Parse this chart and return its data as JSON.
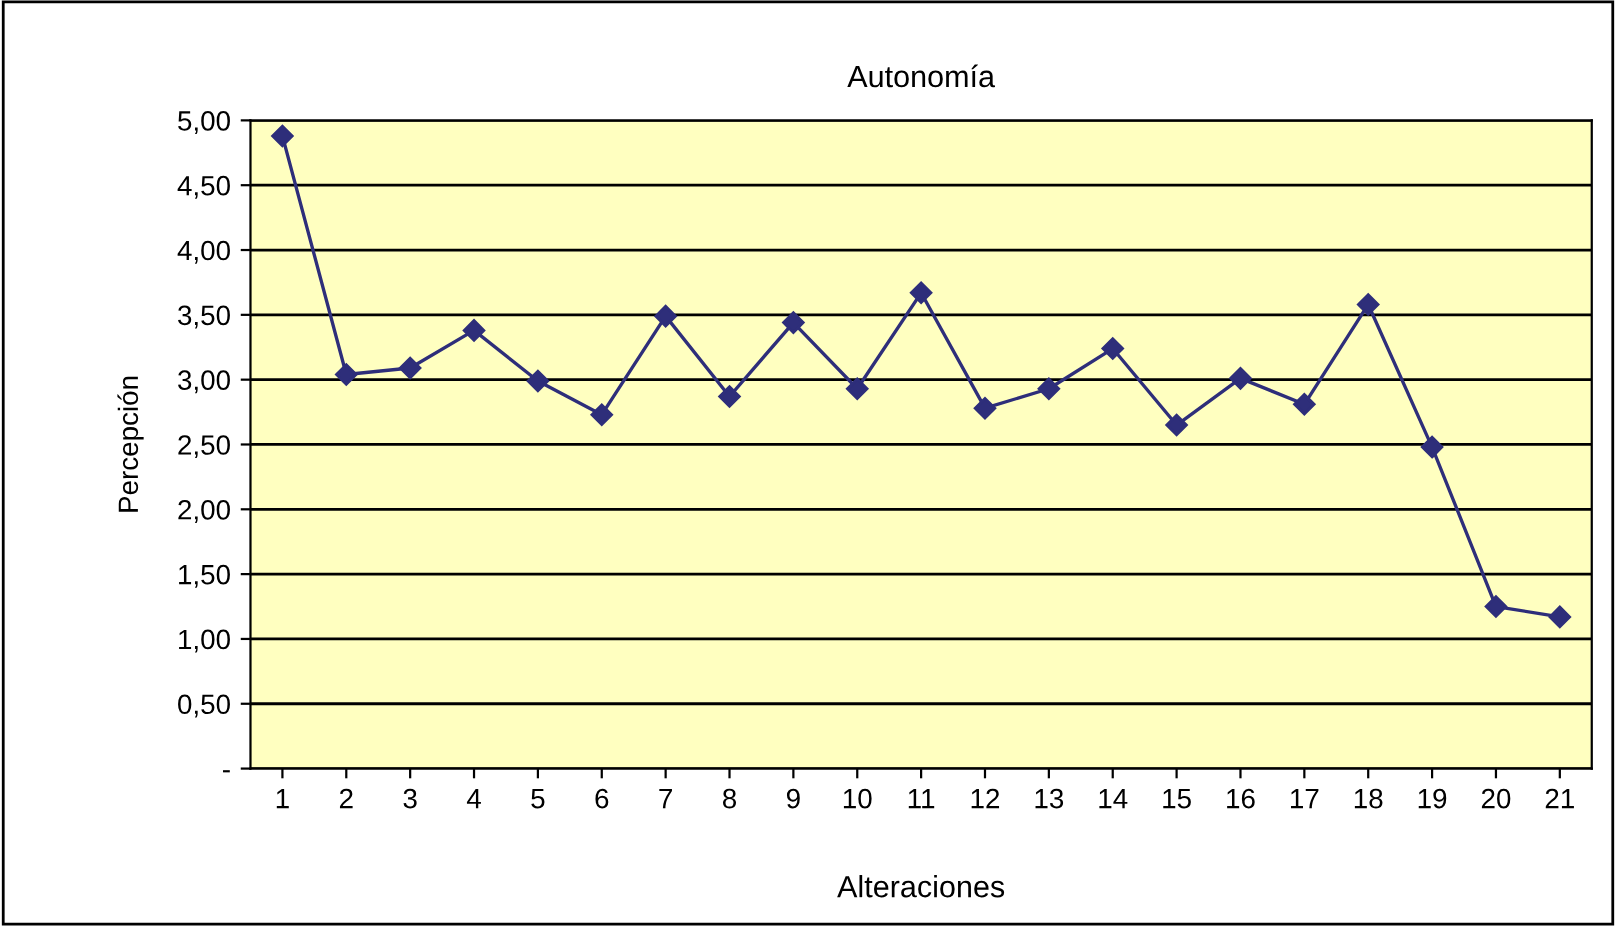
{
  "chart_data": {
    "type": "line",
    "title": "Autonomía",
    "xlabel": "Alteraciones",
    "ylabel": "Percepción",
    "categories": [
      "1",
      "2",
      "3",
      "4",
      "5",
      "6",
      "7",
      "8",
      "9",
      "10",
      "11",
      "12",
      "13",
      "14",
      "15",
      "16",
      "17",
      "18",
      "19",
      "20",
      "21"
    ],
    "series": [
      {
        "color": "#2e2e7a",
        "values": [
          4.88,
          3.04,
          3.09,
          3.38,
          2.99,
          2.73,
          3.49,
          2.87,
          3.44,
          2.93,
          3.67,
          2.78,
          2.93,
          3.24,
          2.65,
          3.01,
          2.81,
          3.58,
          2.48,
          1.25,
          1.17
        ]
      }
    ],
    "ylim": [
      0,
      5
    ],
    "yticks": [
      {
        "value": 0,
        "label": "-"
      },
      {
        "value": 0.5,
        "label": "0,50"
      },
      {
        "value": 1,
        "label": "1,00"
      },
      {
        "value": 1.5,
        "label": "1,50"
      },
      {
        "value": 2,
        "label": "2,00"
      },
      {
        "value": 2.5,
        "label": "2,50"
      },
      {
        "value": 3,
        "label": "3,00"
      },
      {
        "value": 3.5,
        "label": "3,50"
      },
      {
        "value": 4,
        "label": "4,00"
      },
      {
        "value": 4.5,
        "label": "4,50"
      },
      {
        "value": 5,
        "label": "5,00"
      }
    ],
    "grid": "y",
    "marker": "diamond",
    "line_style": "solid",
    "legend": false
  }
}
